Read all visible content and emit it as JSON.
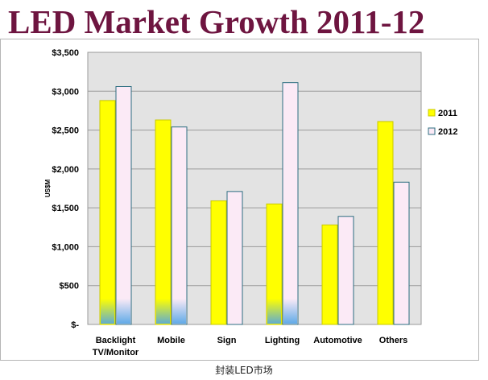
{
  "title": "LED Market Growth 2011-12",
  "caption": "封装LED市场",
  "colors": {
    "s2011": "#ffff00",
    "s2012": "#fbeaf6",
    "title": "#6e1540",
    "plot_bg": "#e3e3e3"
  },
  "chart_data": {
    "type": "bar",
    "title": "LED Market Growth 2011-12",
    "xlabel": "",
    "ylabel": "US$M",
    "ylim": [
      0,
      3500
    ],
    "yticks": [
      0,
      500,
      1000,
      1500,
      2000,
      2500,
      3000,
      3500
    ],
    "ytick_labels": [
      "$-",
      "$500",
      "$1,000",
      "$1,500",
      "$2,000",
      "$2,500",
      "$3,000",
      "$3,500"
    ],
    "categories": [
      "Backlight TV/Monitor",
      "Mobile",
      "Sign",
      "Lighting",
      "Automotive",
      "Others"
    ],
    "category_lines": [
      [
        "Backlight",
        "TV/Monitor"
      ],
      [
        "Mobile"
      ],
      [
        "Sign"
      ],
      [
        "Lighting"
      ],
      [
        "Automotive"
      ],
      [
        "Others"
      ]
    ],
    "series": [
      {
        "name": "2011",
        "values": [
          2880,
          2630,
          1590,
          1550,
          1280,
          2610
        ]
      },
      {
        "name": "2012",
        "values": [
          3060,
          2540,
          1710,
          3110,
          1390,
          1830
        ]
      }
    ],
    "grid": true,
    "legend": "right"
  }
}
